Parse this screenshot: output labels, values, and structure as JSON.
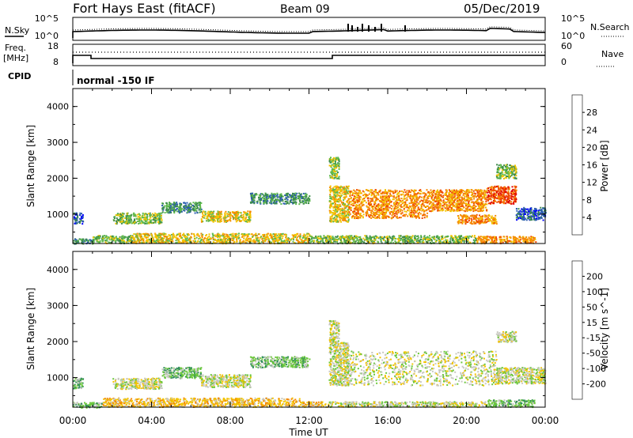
{
  "header": {
    "station": "Fort Hays East (fitACF)",
    "beam": "Beam 09",
    "date": "05/Dec/2019"
  },
  "top_panel": {
    "left_label": "N.Sky",
    "right_label": "N.Search",
    "left_top_tick": "10^5",
    "left_bottom_tick": "10^0",
    "right_top_tick": "10^5",
    "right_bottom_tick": "10^0"
  },
  "freq_panel": {
    "left_label_1": "Freq.",
    "left_label_2": "[MHz]",
    "left_top_tick": "18",
    "left_bottom_tick": "8",
    "right_label": "Nave",
    "right_top_tick": "60",
    "right_bottom_tick": "0"
  },
  "cpid": {
    "label": "CPID",
    "mode": "normal -150 IF"
  },
  "chart_data": [
    {
      "type": "heatmap",
      "name": "power-panel",
      "ylabel": "Slant Range [km]",
      "xlabel": "",
      "ylim": [
        180,
        4500
      ],
      "xlim": [
        0,
        24
      ],
      "yticks": [
        "1000",
        "2000",
        "3000",
        "4000"
      ],
      "colorbar": {
        "label": "Power [dB]",
        "ticks": [
          "4",
          "8",
          "12",
          "16",
          "20",
          "24",
          "28"
        ],
        "colors": [
          "#0000ff",
          "#2a5db0",
          "#3c8c4a",
          "#5fba4c",
          "#f2c400",
          "#f58a00",
          "#f04a00",
          "#e00000"
        ]
      },
      "bands": [
        {
          "t0": 0.0,
          "t1": 1.0,
          "r0": 180,
          "r1": 330,
          "level": 2
        },
        {
          "t0": 1.0,
          "t1": 3.0,
          "r0": 200,
          "r1": 420,
          "level": 3
        },
        {
          "t0": 3.0,
          "t1": 12.0,
          "r0": 200,
          "r1": 480,
          "level": 4
        },
        {
          "t0": 12.0,
          "t1": 20.5,
          "r0": 200,
          "r1": 420,
          "level": 3
        },
        {
          "t0": 20.5,
          "t1": 23.5,
          "r0": 200,
          "r1": 400,
          "level": 5
        },
        {
          "t0": 0.0,
          "t1": 0.5,
          "r0": 750,
          "r1": 1050,
          "level": 1
        },
        {
          "t0": 2.0,
          "t1": 4.5,
          "r0": 750,
          "r1": 1050,
          "level": 3
        },
        {
          "t0": 4.5,
          "t1": 6.5,
          "r0": 1050,
          "r1": 1350,
          "level": 2
        },
        {
          "t0": 6.5,
          "t1": 9.0,
          "r0": 800,
          "r1": 1100,
          "level": 4
        },
        {
          "t0": 9.0,
          "t1": 12.0,
          "r0": 1300,
          "r1": 1600,
          "level": 2
        },
        {
          "t0": 13.0,
          "t1": 14.0,
          "r0": 800,
          "r1": 1800,
          "level": 4
        },
        {
          "t0": 14.0,
          "t1": 18.0,
          "r0": 900,
          "r1": 1700,
          "level": 5
        },
        {
          "t0": 18.0,
          "t1": 21.0,
          "r0": 1100,
          "r1": 1700,
          "level": 5
        },
        {
          "t0": 19.5,
          "t1": 21.5,
          "r0": 750,
          "r1": 1000,
          "level": 5
        },
        {
          "t0": 21.0,
          "t1": 22.5,
          "r0": 1300,
          "r1": 1800,
          "level": 6
        },
        {
          "t0": 22.5,
          "t1": 24.0,
          "r0": 850,
          "r1": 1200,
          "level": 1
        },
        {
          "t0": 13.0,
          "t1": 13.5,
          "r0": 2000,
          "r1": 2600,
          "level": 3
        },
        {
          "t0": 21.5,
          "t1": 22.5,
          "r0": 2000,
          "r1": 2400,
          "level": 3
        }
      ]
    },
    {
      "type": "heatmap",
      "name": "velocity-panel",
      "ylabel": "Slant Range [km]",
      "xlabel": "Time UT",
      "ylim": [
        180,
        4500
      ],
      "xlim": [
        0,
        24
      ],
      "yticks": [
        "1000",
        "2000",
        "3000",
        "4000"
      ],
      "xticks": [
        "00:00",
        "04:00",
        "08:00",
        "12:00",
        "16:00",
        "20:00",
        "00:00"
      ],
      "colorbar": {
        "label": "Velocity [m s^-1]",
        "ticks": [
          "200",
          "100",
          "50",
          "15",
          "-15",
          "-50",
          "-100",
          "-200"
        ],
        "colors": [
          "#1e3a9c",
          "#2e6fb4",
          "#2f8c5a",
          "#6cc83c",
          "#c8c8c0",
          "#f2c400",
          "#f58a00",
          "#f04a00",
          "#e00000"
        ]
      },
      "bands": [
        {
          "t0": 0.0,
          "t1": 1.5,
          "r0": 180,
          "r1": 330,
          "level": 3
        },
        {
          "t0": 1.5,
          "t1": 11.5,
          "r0": 200,
          "r1": 450,
          "level": 5
        },
        {
          "t0": 11.5,
          "t1": 13.0,
          "r0": 200,
          "r1": 350,
          "level": 5
        },
        {
          "t0": 13.0,
          "t1": 21.0,
          "r0": 200,
          "r1": 350,
          "level": 4
        },
        {
          "t0": 21.0,
          "t1": 23.5,
          "r0": 200,
          "r1": 400,
          "level": 3
        },
        {
          "t0": 0.0,
          "t1": 0.5,
          "r0": 700,
          "r1": 1000,
          "level": 3
        },
        {
          "t0": 2.0,
          "t1": 4.5,
          "r0": 700,
          "r1": 1000,
          "level": 4
        },
        {
          "t0": 4.5,
          "t1": 6.5,
          "r0": 1000,
          "r1": 1300,
          "level": 3
        },
        {
          "t0": 6.5,
          "t1": 9.0,
          "r0": 750,
          "r1": 1100,
          "level": 4
        },
        {
          "t0": 9.0,
          "t1": 12.0,
          "r0": 1300,
          "r1": 1600,
          "level": 3
        },
        {
          "t0": 13.0,
          "t1": 14.0,
          "r0": 800,
          "r1": 2000,
          "level": 4
        },
        {
          "t0": 14.0,
          "t1": 21.5,
          "r0": 800,
          "r1": 1750,
          "level": 4
        },
        {
          "t0": 21.5,
          "t1": 24.0,
          "r0": 850,
          "r1": 1300,
          "level": 4
        },
        {
          "t0": 13.0,
          "t1": 13.5,
          "r0": 2000,
          "r1": 2600,
          "level": 4
        },
        {
          "t0": 21.5,
          "t1": 22.5,
          "r0": 2000,
          "r1": 2300,
          "level": 4
        }
      ]
    }
  ]
}
